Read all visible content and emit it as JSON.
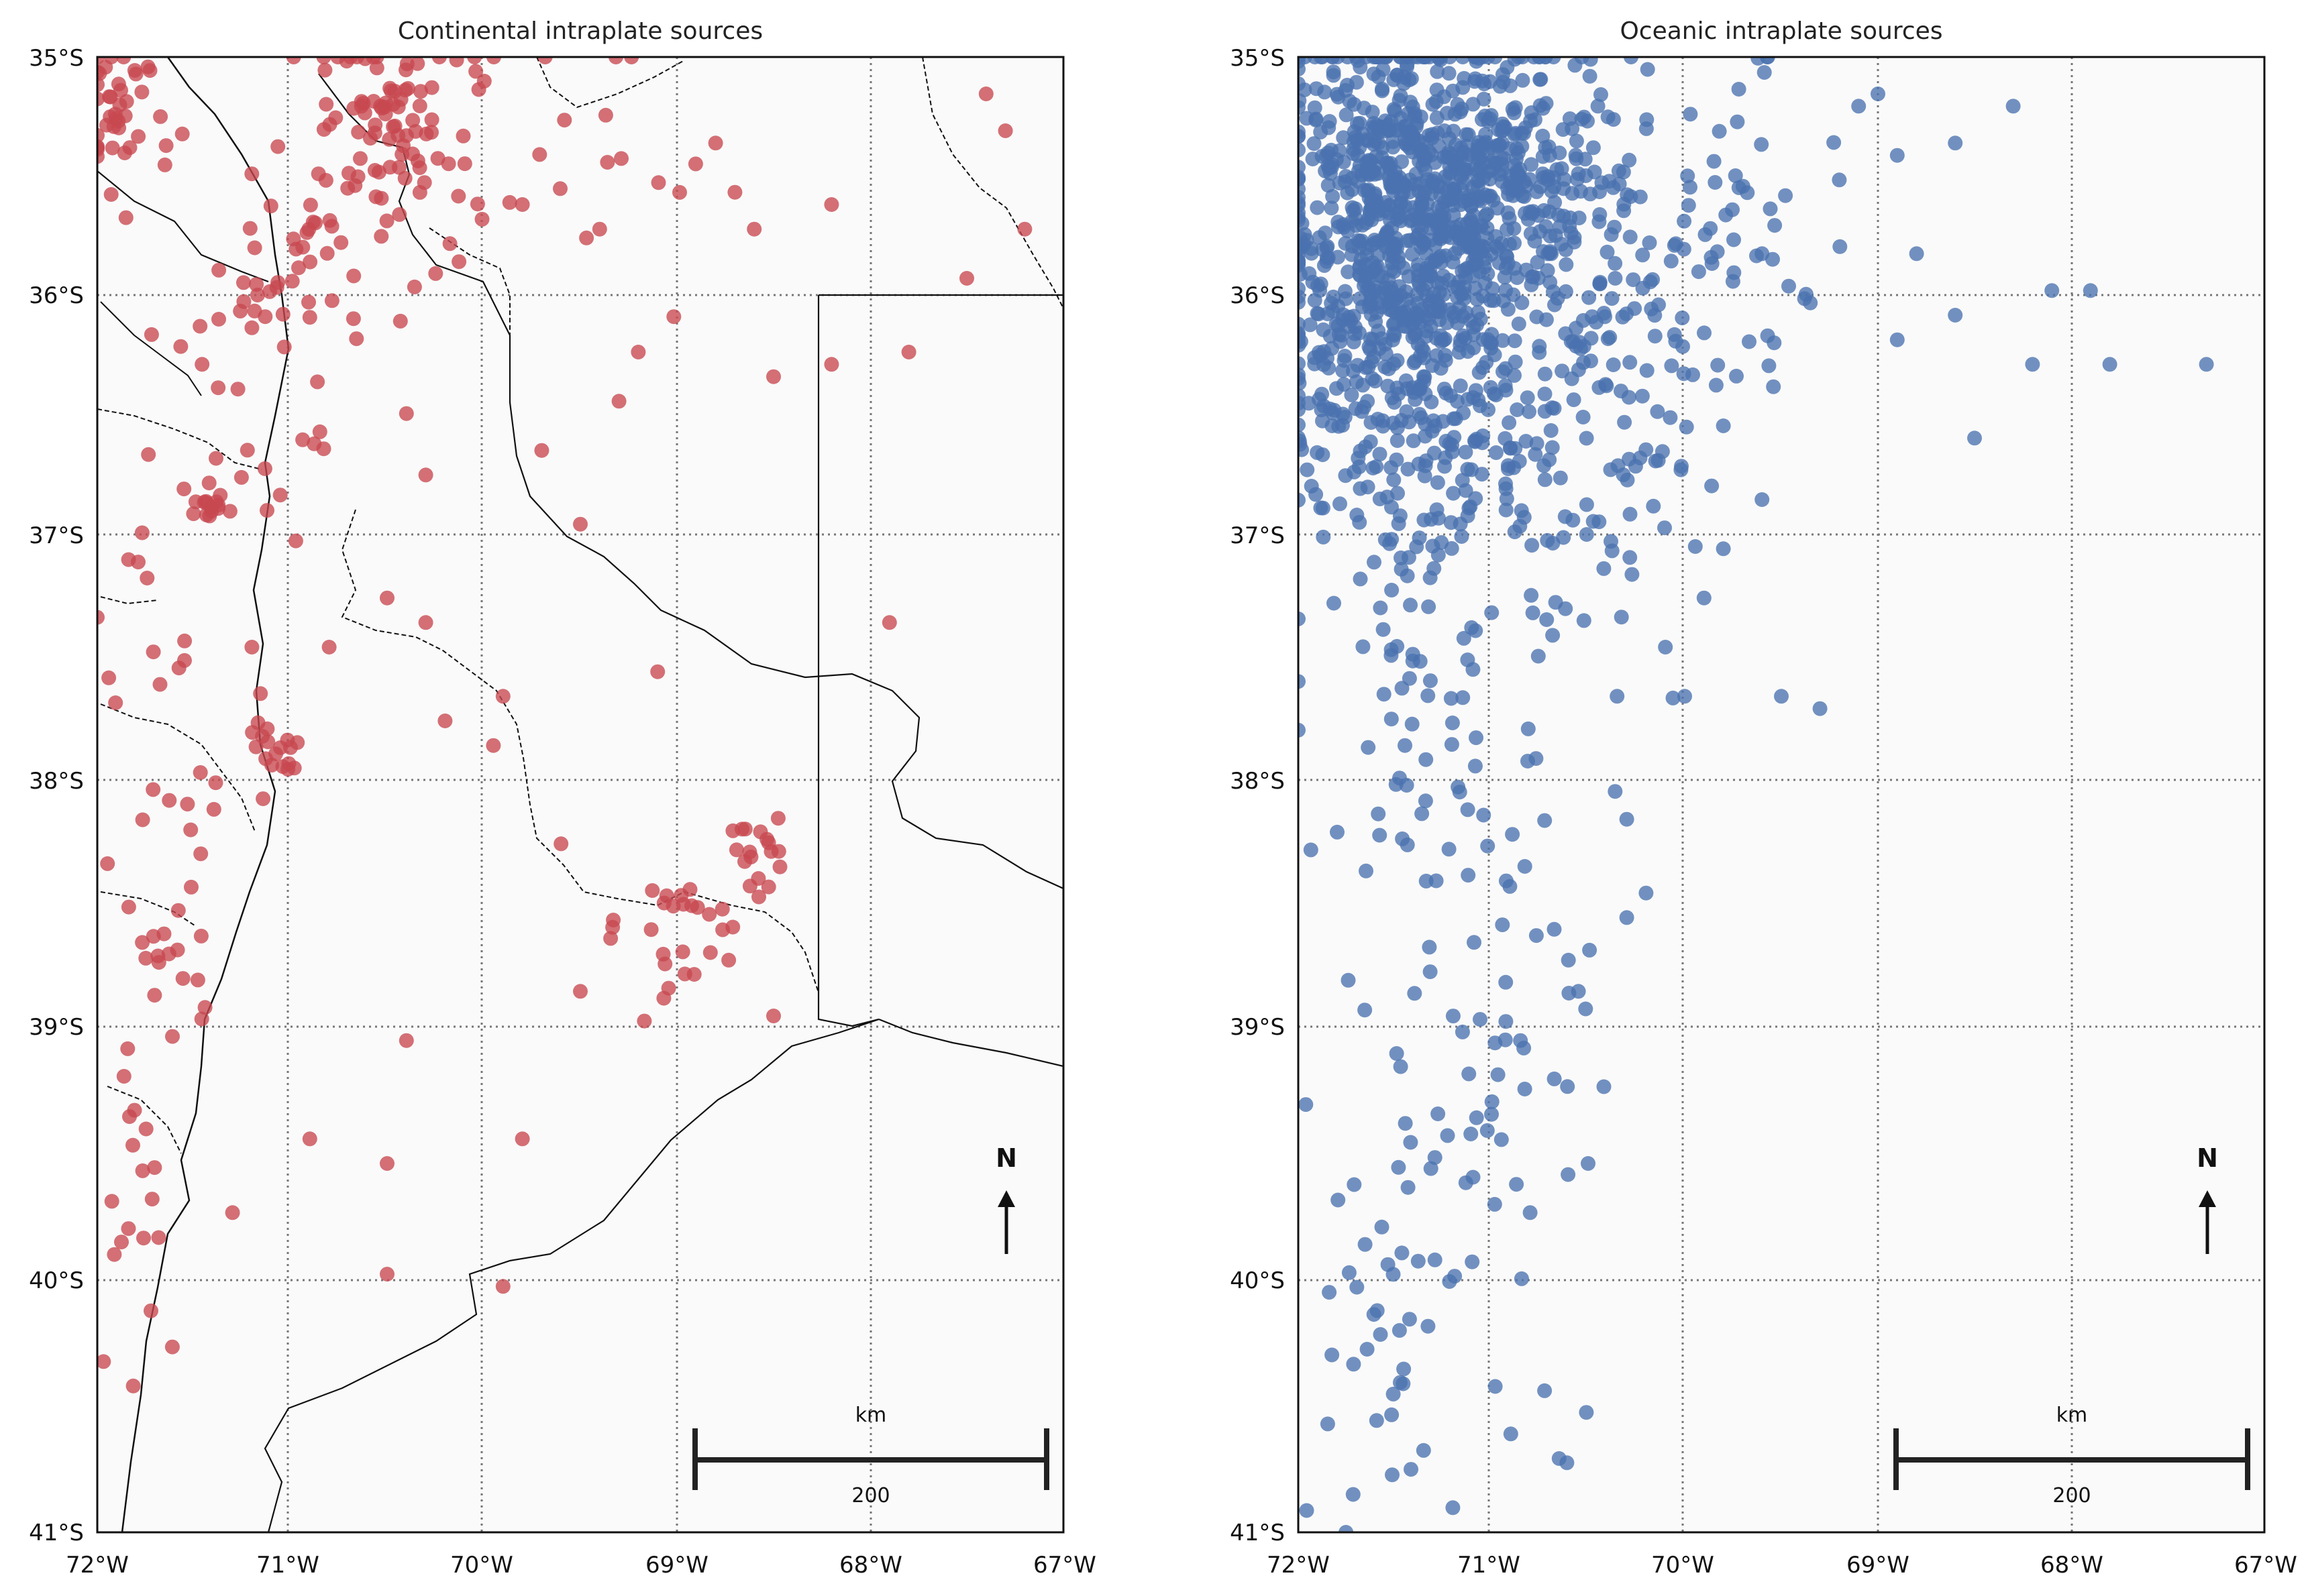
{
  "figure": {
    "panels": [
      {
        "title": "Continental intraplate sources",
        "series_color": "#c8484f",
        "north_label": "N",
        "scale": {
          "unit": "km",
          "value": "200"
        }
      },
      {
        "title": "Oceanic intraplate sources",
        "series_color": "#4a72b0",
        "north_label": "N",
        "scale": {
          "unit": "km",
          "value": "200"
        }
      }
    ],
    "lat_ticks": [
      "35°S",
      "36°S",
      "37°S",
      "38°S",
      "39°S",
      "40°S",
      "41°S"
    ],
    "lon_ticks": [
      "72°W",
      "71°W",
      "70°W",
      "69°W",
      "68°W",
      "67°W"
    ],
    "map_background": "#fafafa"
  },
  "chart_data": [
    {
      "type": "scatter",
      "title": "Continental intraplate sources",
      "xlim": [
        -72,
        -67
      ],
      "ylim": [
        -41,
        -35
      ],
      "x_ticks": [
        "72°W",
        "71°W",
        "70°W",
        "69°W",
        "68°W",
        "67°W"
      ],
      "y_ticks": [
        "35°S",
        "36°S",
        "37°S",
        "38°S",
        "39°S",
        "40°S",
        "41°S"
      ],
      "grid": true,
      "color": "#c8484f",
      "clusters": [
        {
          "lon": -71.9,
          "lat": -35.2,
          "spread": [
            0.12,
            0.18
          ],
          "count": 40
        },
        {
          "lon": -70.5,
          "lat": -35.2,
          "spread": [
            0.2,
            0.2
          ],
          "count": 70
        },
        {
          "lon": -70.8,
          "lat": -35.75,
          "spread": [
            0.2,
            0.15
          ],
          "count": 25
        },
        {
          "lon": -71.4,
          "lat": -36.85,
          "spread": [
            0.07,
            0.07
          ],
          "count": 15
        },
        {
          "lon": -71.1,
          "lat": -37.8,
          "spread": [
            0.07,
            0.07
          ],
          "count": 18
        },
        {
          "lon": -68.6,
          "lat": -38.3,
          "spread": [
            0.12,
            0.12
          ],
          "count": 20
        },
        {
          "lon": -69.0,
          "lat": -38.55,
          "spread": [
            0.2,
            0.12
          ],
          "count": 25
        },
        {
          "lon": -71.6,
          "lat": -38.6,
          "spread": [
            0.1,
            0.3
          ],
          "count": 20
        },
        {
          "lon": -71.8,
          "lat": -39.5,
          "spread": [
            0.1,
            0.5
          ],
          "count": 20
        },
        {
          "lon": -71.7,
          "lat": -37.8,
          "spread": [
            0.2,
            0.5
          ],
          "count": 20
        },
        {
          "lon": -71.3,
          "lat": -36.3,
          "spread": [
            0.3,
            0.4
          ],
          "count": 40
        },
        {
          "lon": -70.0,
          "lat": -35.4,
          "spread": [
            0.6,
            0.35
          ],
          "count": 40
        }
      ],
      "points": [
        [
          -70.4,
          -36.45
        ],
        [
          -70.3,
          -36.7
        ],
        [
          -69.7,
          -36.6
        ],
        [
          -69.5,
          -36.9
        ],
        [
          -69.2,
          -36.2
        ],
        [
          -68.5,
          -36.3
        ],
        [
          -67.8,
          -36.2
        ],
        [
          -67.5,
          -35.9
        ],
        [
          -68.2,
          -35.6
        ],
        [
          -67.2,
          -35.7
        ],
        [
          -67.3,
          -35.3
        ],
        [
          -67.4,
          -35.15
        ],
        [
          -68.8,
          -35.35
        ],
        [
          -69.8,
          -35.6
        ],
        [
          -69.4,
          -35.7
        ],
        [
          -68.6,
          -35.7
        ],
        [
          -69.1,
          -37.5
        ],
        [
          -69.9,
          -37.6
        ],
        [
          -70.2,
          -37.7
        ],
        [
          -70.8,
          -37.4
        ],
        [
          -70.5,
          -37.2
        ],
        [
          -70.9,
          -39.4
        ],
        [
          -70.5,
          -39.5
        ],
        [
          -69.8,
          -39.4
        ],
        [
          -69.9,
          -40.0
        ],
        [
          -70.5,
          -39.95
        ],
        [
          -71.3,
          -39.7
        ],
        [
          -70.4,
          -39.0
        ],
        [
          -67.9,
          -37.3
        ],
        [
          -69.5,
          -38.8
        ],
        [
          -68.2,
          -36.25
        ],
        [
          -68.7,
          -35.55
        ],
        [
          -69.95,
          -37.8
        ],
        [
          -70.3,
          -37.3
        ],
        [
          -69.3,
          -36.4
        ],
        [
          -69.6,
          -38.2
        ],
        [
          -68.5,
          -38.9
        ],
        [
          -71.2,
          -37.4
        ]
      ]
    },
    {
      "type": "scatter",
      "title": "Oceanic intraplate sources",
      "xlim": [
        -72,
        -67
      ],
      "ylim": [
        -41,
        -35
      ],
      "x_ticks": [
        "72°W",
        "71°W",
        "70°W",
        "69°W",
        "68°W",
        "67°W"
      ],
      "y_ticks": [
        "35°S",
        "36°S",
        "37°S",
        "38°S",
        "39°S",
        "40°S",
        "41°S"
      ],
      "grid": true,
      "color": "#4a72b0",
      "clusters": [
        {
          "lon": -71.4,
          "lat": -35.55,
          "spread": [
            0.35,
            0.35
          ],
          "count": 700
        },
        {
          "lon": -71.55,
          "lat": -36.1,
          "spread": [
            0.3,
            0.35
          ],
          "count": 250
        },
        {
          "lon": -70.8,
          "lat": -35.5,
          "spread": [
            0.35,
            0.3
          ],
          "count": 150
        },
        {
          "lon": -70.5,
          "lat": -36.0,
          "spread": [
            0.35,
            0.35
          ],
          "count": 120
        },
        {
          "lon": -71.3,
          "lat": -36.6,
          "spread": [
            0.4,
            0.3
          ],
          "count": 120
        },
        {
          "lon": -70.6,
          "lat": -36.8,
          "spread": [
            0.3,
            0.3
          ],
          "count": 50
        },
        {
          "lon": -71.3,
          "lat": -37.4,
          "spread": [
            0.35,
            0.35
          ],
          "count": 50
        },
        {
          "lon": -71.1,
          "lat": -38.3,
          "spread": [
            0.4,
            0.5
          ],
          "count": 45
        },
        {
          "lon": -71.2,
          "lat": -39.5,
          "spread": [
            0.4,
            0.6
          ],
          "count": 50
        },
        {
          "lon": -71.6,
          "lat": -40.4,
          "spread": [
            0.3,
            0.4
          ],
          "count": 25
        },
        {
          "lon": -69.7,
          "lat": -35.6,
          "spread": [
            0.3,
            0.35
          ],
          "count": 40
        }
      ],
      "points": [
        [
          -69.2,
          -35.5
        ],
        [
          -68.8,
          -35.8
        ],
        [
          -68.6,
          -35.35
        ],
        [
          -68.3,
          -35.2
        ],
        [
          -68.1,
          -35.95
        ],
        [
          -67.9,
          -35.95
        ],
        [
          -67.8,
          -36.25
        ],
        [
          -67.3,
          -36.25
        ],
        [
          -68.2,
          -36.25
        ],
        [
          -68.6,
          -36.05
        ],
        [
          -68.9,
          -36.15
        ],
        [
          -69.35,
          -36.0
        ],
        [
          -68.5,
          -36.55
        ],
        [
          -69.6,
          -35.8
        ],
        [
          -69.0,
          -35.15
        ],
        [
          -68.9,
          -35.4
        ],
        [
          -69.8,
          -36.5
        ],
        [
          -69.6,
          -36.8
        ],
        [
          -69.9,
          -37.2
        ],
        [
          -69.5,
          -37.6
        ],
        [
          -69.3,
          -37.65
        ],
        [
          -70.35,
          -37.6
        ],
        [
          -70.1,
          -37.4
        ],
        [
          -70.3,
          -38.1
        ],
        [
          -70.2,
          -38.4
        ],
        [
          -70.3,
          -38.5
        ],
        [
          -70.5,
          -39.5
        ],
        [
          -70.8,
          -39.7
        ],
        [
          -70.9,
          -40.6
        ],
        [
          -71.2,
          -40.9
        ],
        [
          -71.1,
          -39.9
        ],
        [
          -70.65,
          -40.7
        ],
        [
          -69.1,
          -35.2
        ],
        [
          -69.8,
          -37.0
        ],
        [
          -70.0,
          -37.6
        ],
        [
          -70.55,
          -38.8
        ],
        [
          -70.85,
          -39.0
        ],
        [
          -71.0,
          -39.3
        ]
      ]
    }
  ]
}
